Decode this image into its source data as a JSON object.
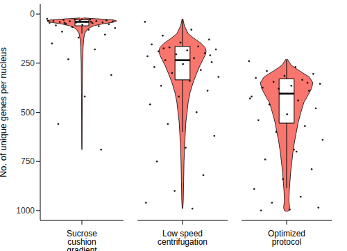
{
  "chart_data": {
    "type": "violin",
    "y_label": "No. of unique genes per nucleus",
    "ylim": [
      -50,
      1050
    ],
    "yticks": [
      0,
      250,
      500,
      750,
      1000
    ],
    "color": "#f8766d",
    "categories": [
      "Sucrose cushion gradient",
      "Low speed centrifugation",
      "Optimized protocol"
    ],
    "groups": [
      {
        "violin": {
          "y": [
            20,
            25,
            30,
            35,
            40,
            45,
            50,
            60,
            70,
            80,
            100,
            130,
            170,
            250,
            400,
            550,
            690
          ],
          "width": [
            0.05,
            0.5,
            0.9,
            1.0,
            0.95,
            0.8,
            0.6,
            0.35,
            0.22,
            0.15,
            0.08,
            0.05,
            0.035,
            0.02,
            0.012,
            0.008,
            0.004
          ]
        },
        "box": {
          "whisker_low": 20,
          "q1": 30,
          "median": 40,
          "q3": 60,
          "whisker_high": 100
        },
        "points": [
          25,
          28,
          30,
          32,
          33,
          35,
          36,
          37,
          38,
          40,
          41,
          42,
          44,
          45,
          47,
          50,
          52,
          55,
          58,
          62,
          66,
          72,
          80,
          90,
          105,
          120,
          150,
          180,
          230,
          310,
          420,
          560,
          690,
          28,
          35,
          40,
          45
        ]
      },
      {
        "violin": {
          "y": [
            25,
            60,
            100,
            130,
            150,
            170,
            190,
            210,
            230,
            260,
            300,
            350,
            400,
            450,
            550,
            650,
            750,
            850,
            950,
            990
          ],
          "width": [
            0.01,
            0.05,
            0.15,
            0.35,
            0.5,
            0.6,
            0.63,
            0.6,
            0.55,
            0.47,
            0.38,
            0.28,
            0.2,
            0.15,
            0.09,
            0.06,
            0.04,
            0.03,
            0.02,
            0.008
          ]
        },
        "box": {
          "whisker_low": 25,
          "q1": 165,
          "median": 235,
          "q3": 335,
          "whisker_high": 600
        },
        "points": [
          40,
          80,
          110,
          130,
          145,
          155,
          165,
          170,
          180,
          185,
          190,
          200,
          205,
          215,
          225,
          235,
          245,
          255,
          270,
          285,
          300,
          320,
          340,
          365,
          390,
          420,
          460,
          500,
          560,
          620,
          680,
          750,
          820,
          900,
          960,
          990,
          175,
          210
        ]
      },
      {
        "violin": {
          "y": [
            230,
            260,
            290,
            320,
            350,
            380,
            410,
            450,
            500,
            550,
            600,
            650,
            700,
            750,
            800,
            850,
            900,
            950,
            985,
            1000,
            1005
          ],
          "width": [
            0.02,
            0.12,
            0.35,
            0.6,
            0.7,
            0.66,
            0.58,
            0.46,
            0.38,
            0.31,
            0.26,
            0.21,
            0.17,
            0.14,
            0.11,
            0.09,
            0.07,
            0.06,
            0.08,
            0.06,
            0.01
          ]
        },
        "box": {
          "whisker_low": 230,
          "q1": 330,
          "median": 405,
          "q3": 555,
          "whisker_high": 885
        },
        "points": [
          240,
          270,
          290,
          305,
          315,
          325,
          335,
          345,
          355,
          365,
          375,
          390,
          405,
          420,
          440,
          460,
          480,
          510,
          540,
          570,
          600,
          640,
          690,
          740,
          790,
          840,
          890,
          930,
          960,
          985,
          995,
          1000,
          350,
          380,
          430,
          700
        ]
      }
    ]
  }
}
